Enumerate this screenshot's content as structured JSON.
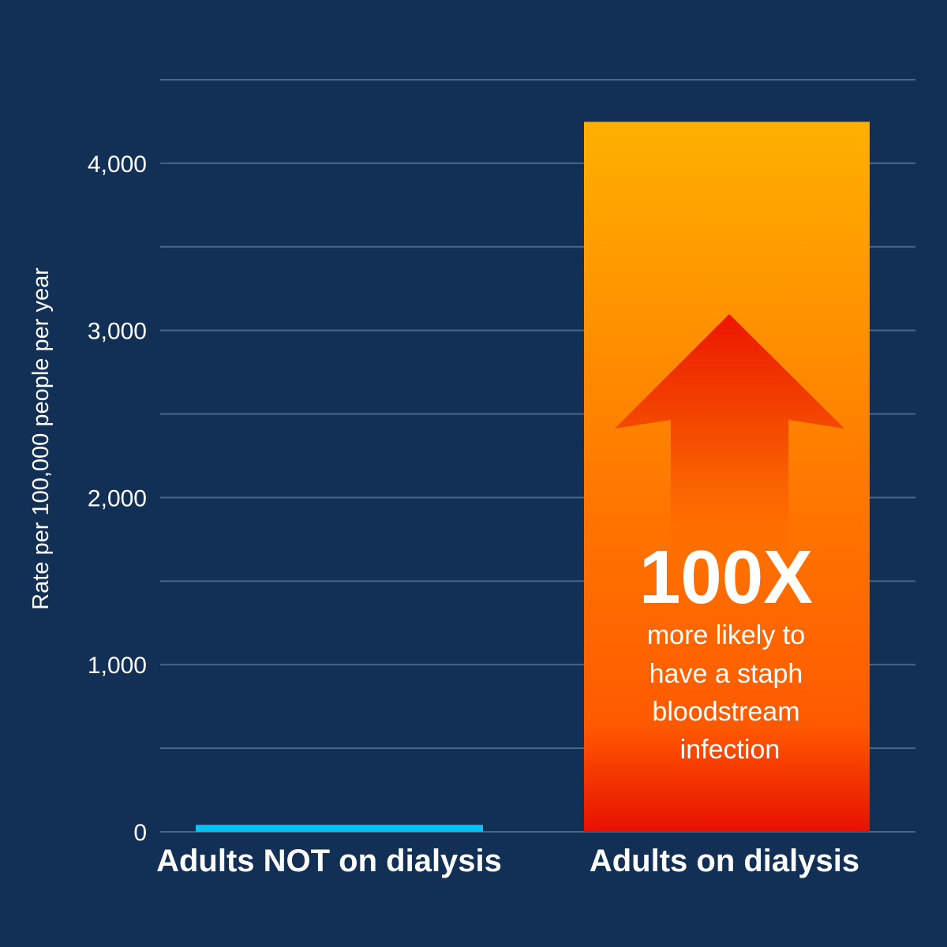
{
  "chart_data": {
    "type": "bar",
    "categories": [
      "Adults NOT on dialysis",
      "Adults on dialysis"
    ],
    "values": [
      42,
      4248
    ],
    "ylabel": "Rate per 100,000 people per year",
    "xlabel": "",
    "ylim": [
      0,
      4500
    ],
    "yticks": [
      0,
      1000,
      2000,
      3000,
      4000
    ],
    "ytick_labels": [
      "0",
      "1,000",
      "2,000",
      "3,000",
      "4,000"
    ],
    "grid": true,
    "gridline_step": 500,
    "annotation": {
      "headline": "100X",
      "lines": [
        "more likely to",
        "have a staph",
        "bloodstream",
        "infection"
      ],
      "icon": "up-arrow-icon"
    },
    "colors": {
      "background": "#123055",
      "bar_not_dialysis": "#00C3F5",
      "bar_dialysis_top": "#FFB000",
      "bar_dialysis_mid": "#FF6A00",
      "bar_dialysis_bottom": "#E81000",
      "gridline": "#4A6688"
    }
  }
}
